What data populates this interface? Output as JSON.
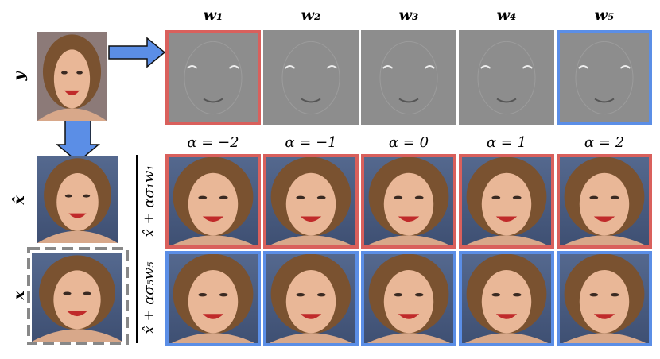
{
  "input_label": "y",
  "components": [
    "w₁",
    "w₂",
    "w₃",
    "w₄",
    "w₅"
  ],
  "alphas": [
    "α = −2",
    "α = −1",
    "α = 0",
    "α = 1",
    "α = 2"
  ],
  "estimate_label": "x̂",
  "truth_label": "x",
  "row_labels": [
    "x̂ + ασ₁w₁",
    "x̂ + ασ₅w₅"
  ]
}
